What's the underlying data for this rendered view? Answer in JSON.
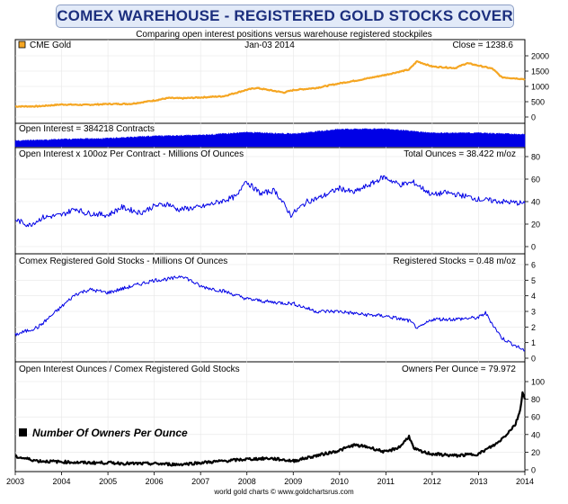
{
  "title": "COMEX WAREHOUSE - REGISTERED GOLD STOCKS COVER",
  "subtitle": "Comparing open interest positions versus warehouse registered stockpiles",
  "footer": "world gold charts © www.goldchartsrus.com",
  "colors": {
    "gold": "#f5a623",
    "blue": "#0000e6",
    "black": "#000000",
    "title": "#1c2f7e"
  },
  "chart_data": [
    {
      "type": "line",
      "legend": "CME Gold",
      "date_label": "Jan-03  2014",
      "readout": "Close = 1238.6",
      "ylim": [
        0,
        2000
      ],
      "yticks": [
        "2000",
        "1500",
        "1000",
        "500",
        "0"
      ],
      "x": [
        2003.0,
        2003.5,
        2004.0,
        2004.5,
        2005.0,
        2005.5,
        2006.0,
        2006.3,
        2006.6,
        2007.0,
        2007.5,
        2008.0,
        2008.2,
        2008.8,
        2009.0,
        2009.5,
        2010.0,
        2010.5,
        2011.0,
        2011.5,
        2011.67,
        2012.0,
        2012.5,
        2012.75,
        2013.0,
        2013.3,
        2013.5,
        2014.0
      ],
      "values": [
        345,
        350,
        410,
        395,
        425,
        430,
        540,
        620,
        610,
        640,
        680,
        890,
        950,
        800,
        880,
        950,
        1100,
        1230,
        1380,
        1550,
        1820,
        1650,
        1600,
        1760,
        1680,
        1580,
        1300,
        1238
      ]
    },
    {
      "type": "area",
      "label": "Open Interest = 384218 Contracts",
      "x": [
        2003.0,
        2004.0,
        2005.0,
        2006.0,
        2007.0,
        2008.0,
        2009.0,
        2010.0,
        2011.0,
        2012.0,
        2013.0,
        2014.0
      ],
      "values": [
        180000,
        230000,
        260000,
        330000,
        360000,
        450000,
        400000,
        550000,
        560000,
        430000,
        430000,
        384218
      ]
    },
    {
      "type": "line",
      "label": "Open Interest x 100oz Per Contract - Millions Of Ounces",
      "readout": "Total Ounces = 38.422 m/oz",
      "ylim": [
        0,
        80
      ],
      "yticks": [
        "80",
        "60",
        "40",
        "20",
        "0"
      ],
      "x": [
        2003.0,
        2003.3,
        2003.6,
        2004.0,
        2004.3,
        2004.5,
        2005.0,
        2005.3,
        2005.7,
        2006.0,
        2006.3,
        2006.5,
        2007.0,
        2007.5,
        2007.8,
        2007.95,
        2008.3,
        2008.6,
        2008.95,
        2009.3,
        2009.6,
        2010.0,
        2010.3,
        2010.7,
        2010.95,
        2011.3,
        2011.6,
        2012.0,
        2012.3,
        2012.7,
        2013.0,
        2013.5,
        2014.0
      ],
      "values": [
        24,
        19,
        26,
        28,
        34,
        30,
        28,
        35,
        30,
        36,
        38,
        33,
        35,
        41,
        45,
        59,
        47,
        50,
        28,
        40,
        44,
        52,
        48,
        56,
        62,
        55,
        57,
        46,
        48,
        45,
        42,
        40,
        38.4
      ]
    },
    {
      "type": "line",
      "label": "Comex Registered Gold Stocks - Millions Of Ounces",
      "readout": "Registered Stocks = 0.48 m/oz",
      "ylim": [
        0,
        6
      ],
      "yticks": [
        "6",
        "5",
        "4",
        "3",
        "2",
        "1",
        "0"
      ],
      "x": [
        2003.0,
        2003.5,
        2004.0,
        2004.3,
        2004.6,
        2005.0,
        2005.5,
        2006.0,
        2006.4,
        2006.6,
        2007.0,
        2007.5,
        2008.0,
        2008.5,
        2009.0,
        2009.5,
        2010.0,
        2010.5,
        2011.0,
        2011.5,
        2011.7,
        2012.0,
        2012.5,
        2013.0,
        2013.15,
        2013.3,
        2013.5,
        2013.8,
        2014.0
      ],
      "values": [
        1.5,
        2.0,
        3.3,
        4.1,
        4.4,
        4.2,
        4.6,
        5.0,
        5.1,
        5.3,
        4.6,
        4.3,
        3.8,
        3.6,
        3.5,
        3.0,
        3.0,
        2.8,
        2.7,
        2.4,
        1.9,
        2.5,
        2.5,
        2.6,
        2.9,
        2.2,
        1.3,
        0.8,
        0.48
      ]
    },
    {
      "type": "line",
      "label": "Open Interest Ounces / Comex Registered Gold Stocks",
      "readout": "Owners Per Ounce = 79.972",
      "legend": "Number Of Owners Per Ounce",
      "ylim": [
        0,
        100
      ],
      "yticks": [
        "100",
        "80",
        "60",
        "40",
        "20",
        "0"
      ],
      "x": [
        2003.0,
        2003.5,
        2004.0,
        2004.5,
        2005.0,
        2005.5,
        2006.0,
        2006.5,
        2007.0,
        2007.5,
        2008.0,
        2008.5,
        2009.0,
        2009.5,
        2010.0,
        2010.3,
        2010.6,
        2011.0,
        2011.3,
        2011.5,
        2011.6,
        2011.8,
        2012.0,
        2012.5,
        2013.0,
        2013.2,
        2013.4,
        2013.6,
        2013.8,
        2013.9,
        2013.95,
        2014.0
      ],
      "values": [
        15,
        10,
        9,
        8,
        8,
        7,
        7,
        6,
        8,
        10,
        12,
        13,
        10,
        16,
        22,
        28,
        26,
        20,
        26,
        38,
        24,
        20,
        18,
        16,
        18,
        24,
        30,
        40,
        52,
        68,
        88,
        80
      ]
    }
  ],
  "xticks": [
    "2003",
    "2004",
    "2005",
    "2006",
    "2007",
    "2008",
    "2009",
    "2010",
    "2011",
    "2012",
    "2013",
    "2014"
  ]
}
